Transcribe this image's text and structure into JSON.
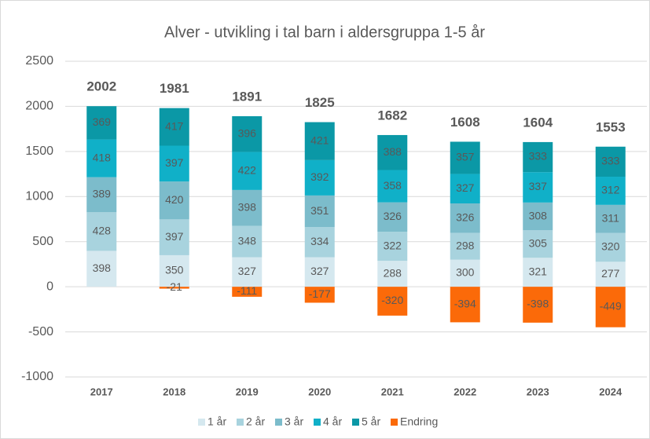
{
  "chart_data": {
    "type": "stacked-bar",
    "title": "Alver - utvikling i tal barn i aldersgruppa 1-5 år",
    "categories": [
      "2017",
      "2018",
      "2019",
      "2020",
      "2021",
      "2022",
      "2023",
      "2024"
    ],
    "series": [
      {
        "name": "1 år",
        "color": "#d5e8ef",
        "values": [
          398,
          350,
          327,
          327,
          288,
          300,
          321,
          277
        ]
      },
      {
        "name": "2 år",
        "color": "#a8d3de",
        "values": [
          428,
          397,
          348,
          334,
          322,
          298,
          305,
          320
        ]
      },
      {
        "name": "3 år",
        "color": "#7cbccb",
        "values": [
          389,
          420,
          398,
          351,
          326,
          326,
          308,
          311
        ]
      },
      {
        "name": "4 år",
        "color": "#10b0c8",
        "values": [
          418,
          397,
          422,
          392,
          358,
          327,
          337,
          312
        ]
      },
      {
        "name": "5 år",
        "color": "#0b98a6",
        "values": [
          369,
          417,
          396,
          421,
          388,
          357,
          333,
          333
        ]
      },
      {
        "name": "Endring",
        "color": "#fb6a09",
        "values": [
          null,
          -21,
          -111,
          -177,
          -320,
          -394,
          -398,
          -449
        ]
      }
    ],
    "totals": [
      2002,
      1981,
      1891,
      1825,
      1682,
      1608,
      1604,
      1553
    ],
    "ylim": [
      -1000,
      2500
    ],
    "yticks": [
      -1000,
      -500,
      0,
      500,
      1000,
      1500,
      2000,
      2500
    ],
    "grid": true,
    "legend": "bottom"
  }
}
